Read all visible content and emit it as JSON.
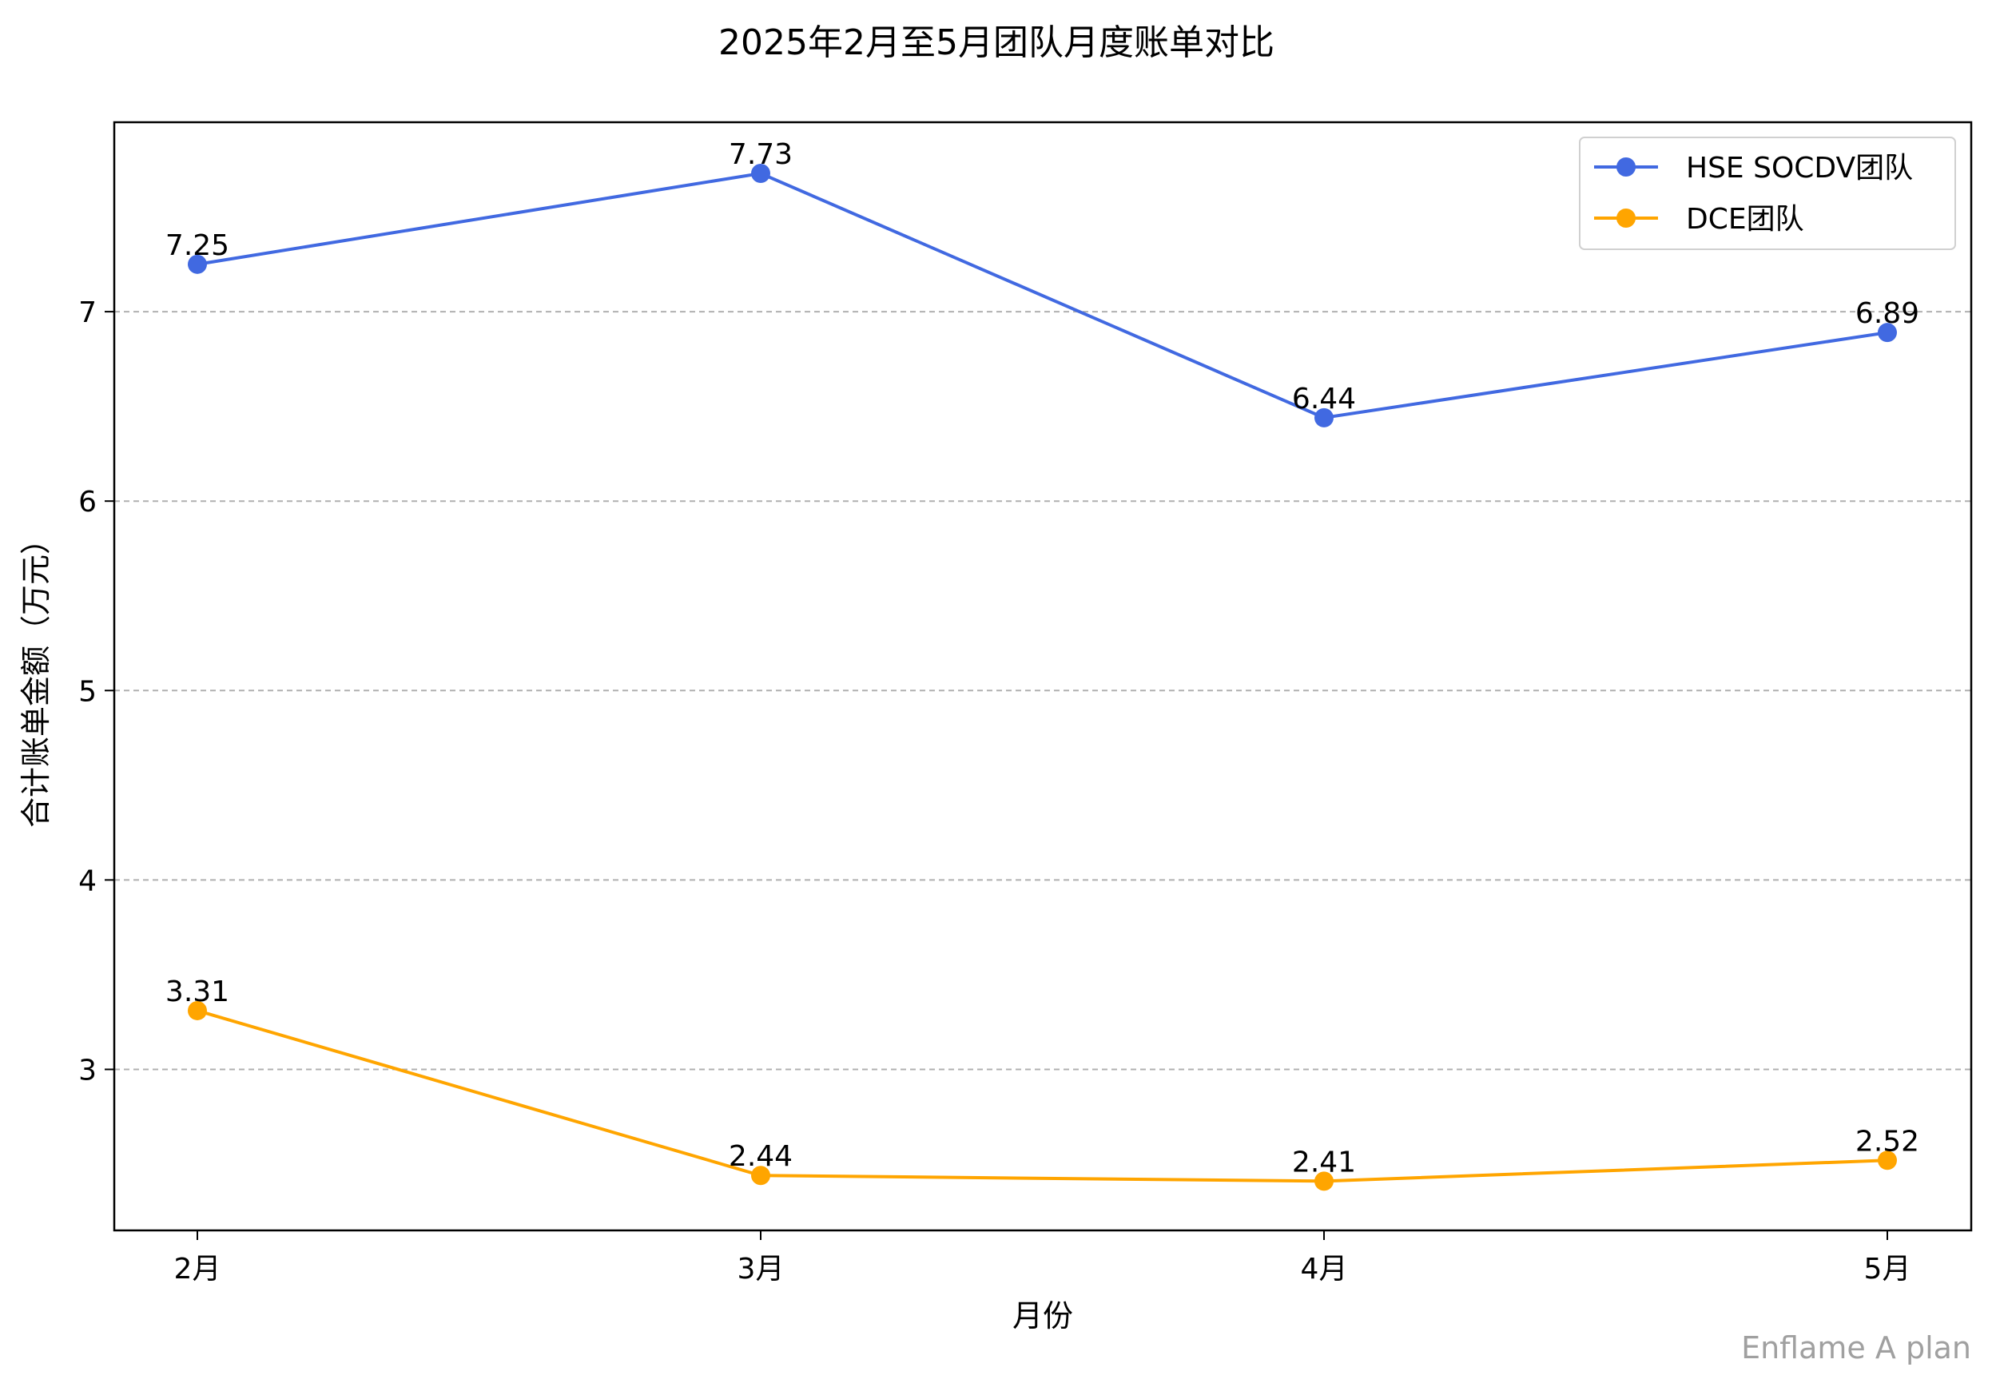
{
  "chart_data": {
    "type": "line",
    "title": "2025年2月至5月团队月度账单对比",
    "xlabel": "月份",
    "ylabel": "合计账单金额（万元）",
    "categories": [
      "2月",
      "3月",
      "4月",
      "5月"
    ],
    "yticks": [
      3,
      4,
      5,
      6,
      7
    ],
    "ylim": [
      2.15,
      8.0
    ],
    "grid": "horizontal dashed",
    "legend_position": "top-right",
    "series": [
      {
        "name": "HSE SOCDV团队",
        "color": "#4169e1",
        "values": [
          7.25,
          7.73,
          6.44,
          6.89
        ],
        "labels": [
          "7.25",
          "7.73",
          "6.44",
          "6.89"
        ]
      },
      {
        "name": "DCE团队",
        "color": "#ffa500",
        "values": [
          3.31,
          2.44,
          2.41,
          2.52
        ],
        "labels": [
          "3.31",
          "2.44",
          "2.41",
          "2.52"
        ]
      }
    ]
  },
  "footer_note": "Enflame A plan"
}
